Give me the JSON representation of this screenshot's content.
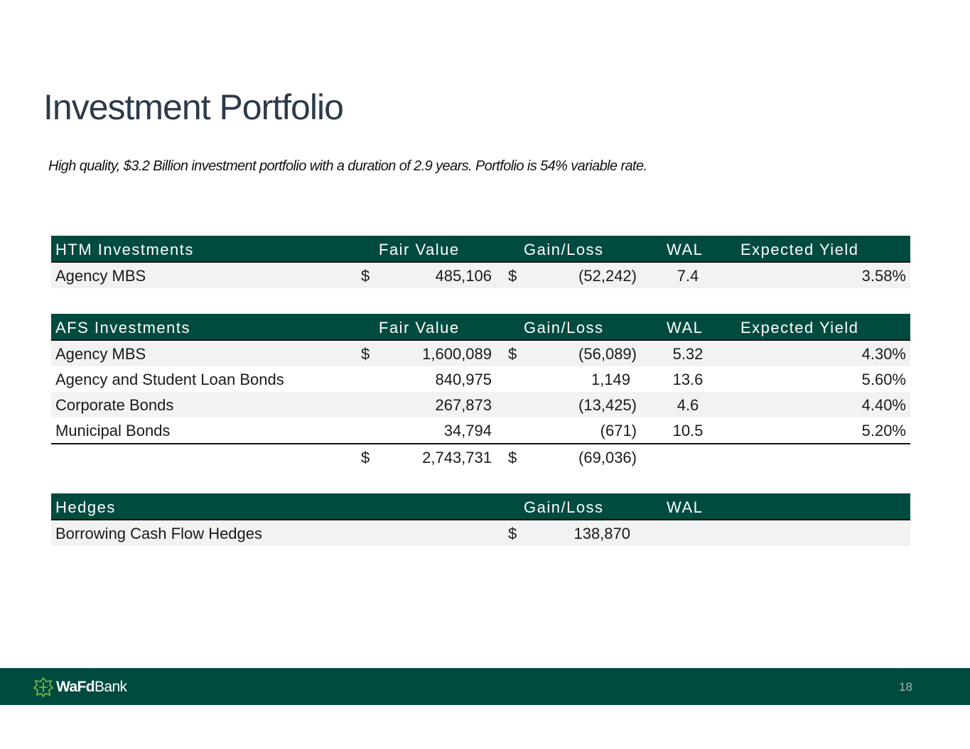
{
  "title": "Investment Portfolio",
  "subtitle": "High quality, $3.2 Billion investment portfolio with a duration of 2.9 years.  Portfolio is 54% variable rate.",
  "htm": {
    "header": {
      "name": "HTM Investments",
      "fair_value": "Fair Value",
      "gain_loss": "Gain/Loss",
      "wal": "WAL",
      "yield": "Expected Yield"
    },
    "rows": [
      {
        "name": "Agency MBS",
        "dollar1": "$",
        "fair_value": "485,106",
        "dollar2": "$",
        "gain_loss": "(52,242)",
        "wal": "7.4",
        "yield": "3.58%"
      }
    ]
  },
  "afs": {
    "header": {
      "name": "AFS Investments",
      "fair_value": "Fair Value",
      "gain_loss": "Gain/Loss",
      "wal": "WAL",
      "yield": "Expected Yield"
    },
    "rows": [
      {
        "name": "Agency MBS",
        "dollar1": "$",
        "fair_value": "1,600,089",
        "dollar2": "$",
        "gain_loss": "(56,089)",
        "wal": "5.32",
        "yield": "4.30%"
      },
      {
        "name": "Agency and Student Loan Bonds",
        "dollar1": "",
        "fair_value": "840,975",
        "dollar2": "",
        "gain_loss": "1,149",
        "wal": "13.6",
        "yield": "5.60%"
      },
      {
        "name": "Corporate Bonds",
        "dollar1": "",
        "fair_value": "267,873",
        "dollar2": "",
        "gain_loss": "(13,425)",
        "wal": "4.6",
        "yield": "4.40%"
      },
      {
        "name": "Municipal Bonds",
        "dollar1": "",
        "fair_value": "34,794",
        "dollar2": "",
        "gain_loss": "(671)",
        "wal": "10.5",
        "yield": "5.20%"
      }
    ],
    "total": {
      "dollar1": "$",
      "fair_value": "2,743,731",
      "dollar2": "$",
      "gain_loss": "(69,036)"
    }
  },
  "hedges": {
    "header": {
      "name": "Hedges",
      "gain_loss": "Gain/Loss",
      "wal": "WAL"
    },
    "rows": [
      {
        "name": "Borrowing Cash Flow Hedges",
        "dollar2": "$",
        "gain_loss": "138,870"
      }
    ]
  },
  "footer": {
    "logo_bold": "WaFd",
    "logo_regular": "Bank",
    "page_number": "18",
    "background_color": "#004b40",
    "logo_icon": "wafd-logo-icon"
  },
  "colors": {
    "header_bg": "#004b40",
    "shaded_row": "#f2f2f2",
    "title": "#2c3a49"
  }
}
